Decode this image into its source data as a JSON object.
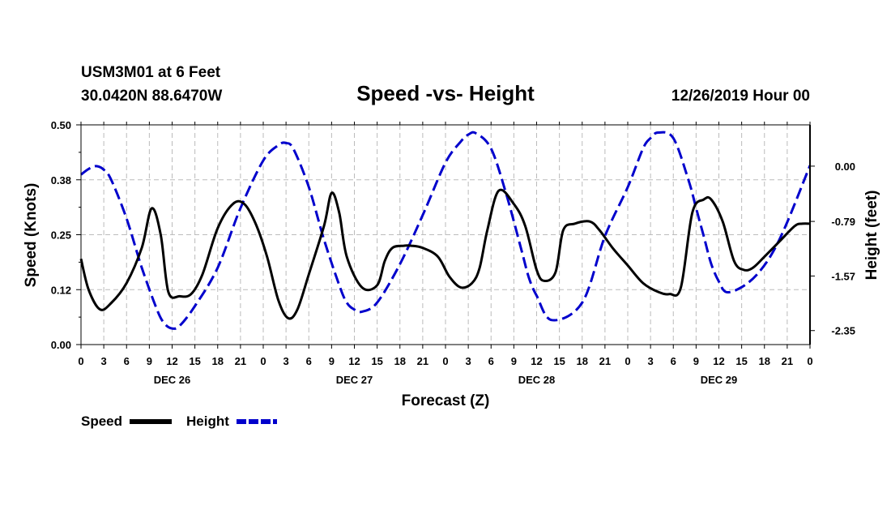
{
  "header": {
    "station": "USM3M01 at 6 Feet",
    "coords": "30.0420N 88.6470W",
    "title": "Speed -vs- Height",
    "date": "12/26/2019 Hour 00"
  },
  "legend": {
    "speed_label": "Speed",
    "height_label": "Height"
  },
  "colors": {
    "speed": "#000000",
    "height": "#0000cc",
    "grid": "#bbbbbb"
  },
  "chart_data": {
    "type": "line",
    "title": "Speed -vs- Height",
    "xlabel": "Forecast (Z)",
    "ylabel": "Speed (Knots)",
    "y2label": "Height (feet)",
    "xlim": [
      0,
      96
    ],
    "ylim": [
      0,
      0.5
    ],
    "y2lim": [
      -2.55,
      0.59
    ],
    "x_tick_values": [
      0,
      3,
      6,
      9,
      12,
      15,
      18,
      21,
      24,
      27,
      30,
      33,
      36,
      39,
      42,
      45,
      48,
      51,
      54,
      57,
      60,
      63,
      66,
      69,
      72,
      75,
      78,
      81,
      84,
      87,
      90,
      93,
      96
    ],
    "x_tick_labels": [
      "0",
      "3",
      "6",
      "9",
      "12",
      "15",
      "18",
      "21",
      "0",
      "3",
      "6",
      "9",
      "12",
      "15",
      "18",
      "21",
      "0",
      "3",
      "6",
      "9",
      "12",
      "15",
      "18",
      "21",
      "0",
      "3",
      "6",
      "9",
      "12",
      "15",
      "18",
      "21",
      "0"
    ],
    "day_labels": [
      {
        "x": 12,
        "label": "DEC 26"
      },
      {
        "x": 36,
        "label": "DEC 27"
      },
      {
        "x": 60,
        "label": "DEC 28"
      },
      {
        "x": 84,
        "label": "DEC 29"
      }
    ],
    "y_ticks": [
      {
        "value": 0.0,
        "label": "0.00"
      },
      {
        "value": 0.125,
        "label": "0.12"
      },
      {
        "value": 0.25,
        "label": "0.25"
      },
      {
        "value": 0.375,
        "label": "0.38"
      },
      {
        "value": 0.5,
        "label": "0.50"
      }
    ],
    "y2_ticks": [
      {
        "value": 0.0,
        "label": "0.00"
      },
      {
        "value": -0.79,
        "label": "-0.79"
      },
      {
        "value": -1.57,
        "label": "-1.57"
      },
      {
        "value": -2.35,
        "label": "-2.35"
      }
    ],
    "series": [
      {
        "name": "Speed",
        "axis": "left",
        "style": "solid",
        "x": [
          0,
          1,
          2.5,
          4,
          6,
          8,
          9.3,
          10.5,
          11.5,
          13,
          14.5,
          16,
          18,
          20,
          21.5,
          23,
          24.5,
          26,
          27.3,
          28.5,
          30,
          32,
          33,
          34,
          35,
          37,
          39,
          40,
          41,
          42.5,
          43.5,
          45,
          47,
          48.5,
          50,
          51.5,
          52.5,
          53.5,
          55,
          57,
          58.5,
          60,
          61,
          62.5,
          63.5,
          65,
          67,
          68.3,
          70,
          72,
          74,
          76,
          77.5,
          79,
          80.5,
          82,
          83,
          84.5,
          86,
          87.3,
          88.5,
          90,
          92,
          94,
          95,
          96
        ],
        "values": [
          0.195,
          0.125,
          0.08,
          0.095,
          0.14,
          0.22,
          0.31,
          0.25,
          0.12,
          0.11,
          0.115,
          0.16,
          0.265,
          0.32,
          0.32,
          0.275,
          0.2,
          0.1,
          0.06,
          0.08,
          0.16,
          0.27,
          0.345,
          0.3,
          0.2,
          0.13,
          0.135,
          0.19,
          0.22,
          0.225,
          0.225,
          0.22,
          0.2,
          0.155,
          0.13,
          0.14,
          0.175,
          0.26,
          0.35,
          0.32,
          0.27,
          0.17,
          0.145,
          0.165,
          0.26,
          0.275,
          0.28,
          0.26,
          0.22,
          0.18,
          0.14,
          0.12,
          0.115,
          0.13,
          0.3,
          0.33,
          0.33,
          0.28,
          0.19,
          0.17,
          0.175,
          0.2,
          0.235,
          0.27,
          0.275,
          0.275
        ]
      },
      {
        "name": "Height",
        "axis": "right",
        "style": "dashed",
        "x": [
          0,
          1,
          2,
          3,
          4,
          6,
          8,
          10,
          11,
          12,
          13,
          15,
          18,
          21,
          24,
          26,
          27,
          28,
          30,
          32,
          34,
          35,
          36,
          37,
          39,
          42,
          45,
          48,
          50,
          51,
          52,
          54,
          56,
          58,
          59,
          60,
          62,
          66,
          69,
          72,
          74,
          75,
          76,
          78,
          80,
          81,
          82,
          83,
          84,
          85,
          87,
          89,
          91,
          93,
          96
        ],
        "values": [
          -0.12,
          -0.04,
          0.0,
          -0.05,
          -0.2,
          -0.75,
          -1.45,
          -2.05,
          -2.25,
          -2.32,
          -2.28,
          -2.0,
          -1.45,
          -0.6,
          0.08,
          0.3,
          0.33,
          0.24,
          -0.3,
          -1.05,
          -1.7,
          -1.95,
          -2.05,
          -2.08,
          -1.95,
          -1.4,
          -0.7,
          0.05,
          0.35,
          0.45,
          0.47,
          0.25,
          -0.4,
          -1.2,
          -1.6,
          -1.85,
          -2.2,
          -1.95,
          -1.0,
          -0.3,
          0.25,
          0.4,
          0.48,
          0.4,
          -0.2,
          -0.6,
          -1.0,
          -1.4,
          -1.65,
          -1.8,
          -1.73,
          -1.55,
          -1.25,
          -0.8,
          0.01
        ]
      }
    ]
  }
}
